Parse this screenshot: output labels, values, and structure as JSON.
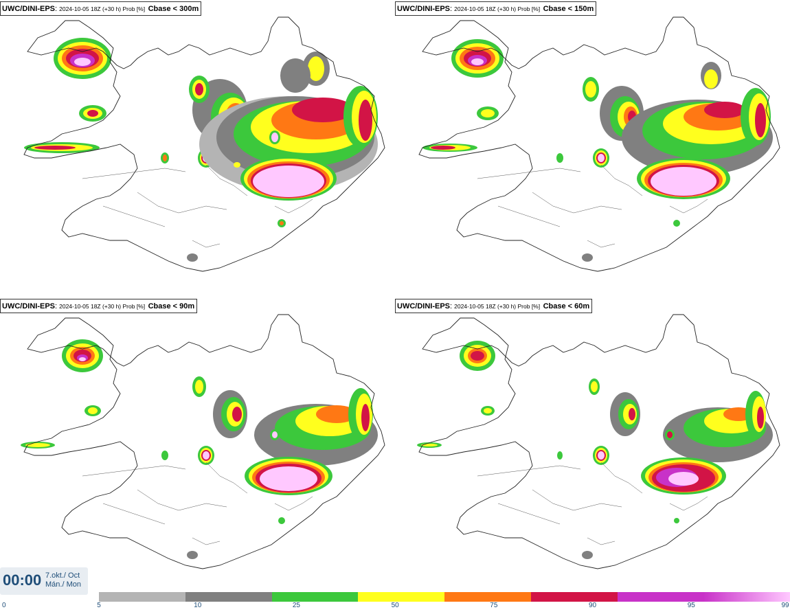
{
  "panels": [
    {
      "model": "UWC/DINI-EPS",
      "run": "2024-10-05 18Z (+30 h) Prob [%]",
      "variable": "Cbase < 300m"
    },
    {
      "model": "UWC/DINI-EPS",
      "run": "2024-10-05 18Z (+30 h) Prob [%]",
      "variable": "Cbase < 150m"
    },
    {
      "model": "UWC/DINI-EPS",
      "run": "2024-10-05 18Z (+30 h) Prob [%]",
      "variable": "Cbase < 90m"
    },
    {
      "model": "UWC/DINI-EPS",
      "run": "2024-10-05 18Z (+30 h) Prob [%]",
      "variable": "Cbase < 60m"
    }
  ],
  "time": {
    "clock": "00:00",
    "date_line1": "7.okt./ Oct",
    "date_line2": "Mán./ Mon"
  },
  "colorbar": {
    "ticks": [
      "0",
      "5",
      "10",
      "25",
      "50",
      "75",
      "90",
      "95",
      "99"
    ],
    "colors": [
      "#b4b4b4",
      "#808080",
      "#3cc83c",
      "#ffff1e",
      "#ff7814",
      "#d21446",
      "#c832c8",
      "#ffc8ff"
    ]
  },
  "map_legend_colors": {
    "p5": "#b4b4b4",
    "p10": "#808080",
    "p25": "#3cc83c",
    "p50": "#ffff1e",
    "p75": "#ff7814",
    "p90": "#d21446",
    "p95": "#c832c8",
    "p99": "#ffc8ff"
  }
}
